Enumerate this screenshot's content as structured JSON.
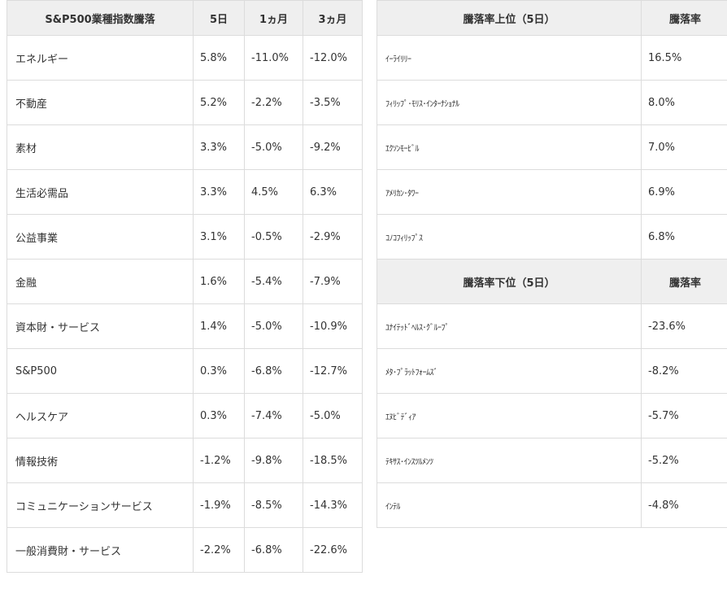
{
  "sector_table": {
    "headers": [
      "S&P500業種指数騰落",
      "5日",
      "1ヵ月",
      "3ヵ月"
    ],
    "rows": [
      {
        "name": "エネルギー",
        "d5": "5.8%",
        "m1": "-11.0%",
        "m3": "-12.0%"
      },
      {
        "name": "不動産",
        "d5": "5.2%",
        "m1": "-2.2%",
        "m3": "-3.5%"
      },
      {
        "name": "素材",
        "d5": "3.3%",
        "m1": "-5.0%",
        "m3": "-9.2%"
      },
      {
        "name": "生活必需品",
        "d5": "3.3%",
        "m1": "4.5%",
        "m3": "6.3%"
      },
      {
        "name": "公益事業",
        "d5": "3.1%",
        "m1": "-0.5%",
        "m3": "-2.9%"
      },
      {
        "name": "金融",
        "d5": "1.6%",
        "m1": "-5.4%",
        "m3": "-7.9%"
      },
      {
        "name": "資本財・サービス",
        "d5": "1.4%",
        "m1": "-5.0%",
        "m3": "-10.9%"
      },
      {
        "name": "S&P500",
        "d5": "0.3%",
        "m1": "-6.8%",
        "m3": "-12.7%"
      },
      {
        "name": "ヘルスケア",
        "d5": "0.3%",
        "m1": "-7.4%",
        "m3": "-5.0%"
      },
      {
        "name": "情報技術",
        "d5": "-1.2%",
        "m1": "-9.8%",
        "m3": "-18.5%"
      },
      {
        "name": "コミュニケーションサービス",
        "d5": "-1.9%",
        "m1": "-8.5%",
        "m3": "-14.3%"
      },
      {
        "name": "一般消費財・サービス",
        "d5": "-2.2%",
        "m1": "-6.8%",
        "m3": "-22.6%"
      }
    ]
  },
  "top_table": {
    "headers": [
      "騰落率上位（5日）",
      "騰落率"
    ],
    "rows": [
      {
        "name": "ｲｰﾗｲﾘﾘｰ",
        "value": "16.5%"
      },
      {
        "name": "ﾌｨﾘｯﾌﾟ･ﾓﾘｽ･ｲﾝﾀｰﾅｼｮﾅﾙ",
        "value": "8.0%"
      },
      {
        "name": "ｴｸｿﾝﾓｰﾋﾞﾙ",
        "value": "7.0%"
      },
      {
        "name": "ｱﾒﾘｶﾝ･ﾀﾜｰ",
        "value": "6.9%"
      },
      {
        "name": "ｺﾉｺﾌｨﾘｯﾌﾟｽ",
        "value": "6.8%"
      }
    ]
  },
  "bottom_table": {
    "headers": [
      "騰落率下位（5日）",
      "騰落率"
    ],
    "rows": [
      {
        "name": "ﾕﾅｲﾃｯﾄﾞﾍﾙｽ･ｸﾞﾙｰﾌﾟ",
        "value": "-23.6%"
      },
      {
        "name": "ﾒﾀ･ﾌﾟﾗｯﾄﾌｫｰﾑｽﾞ",
        "value": "-8.2%"
      },
      {
        "name": "ｴﾇﾋﾞﾃﾞｨｱ",
        "value": "-5.7%"
      },
      {
        "name": "ﾃｷｻｽ･ｲﾝｽﾂﾙﾒﾝﾂ",
        "value": "-5.2%"
      },
      {
        "name": "ｲﾝﾃﾙ",
        "value": "-4.8%"
      }
    ]
  }
}
